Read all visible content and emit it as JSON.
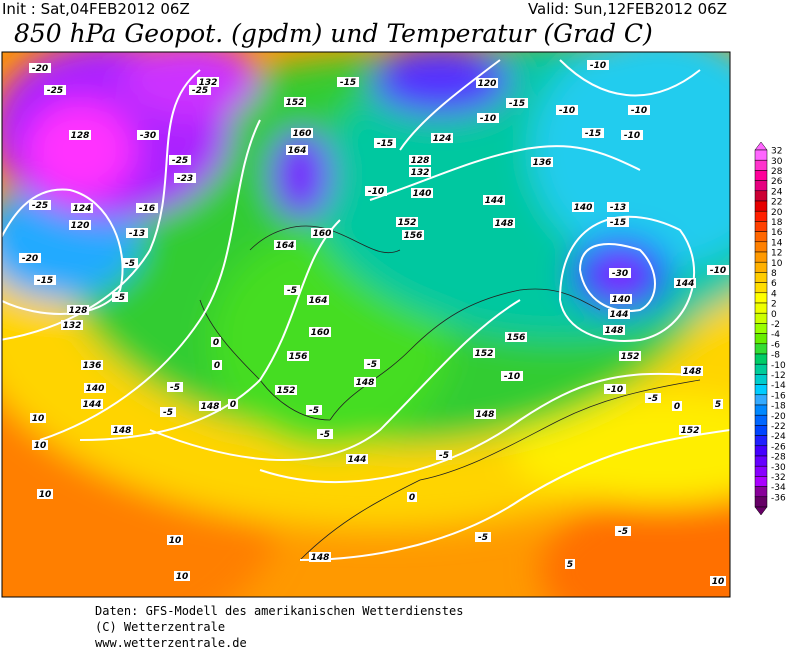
{
  "header": {
    "init": "Init : Sat,04FEB2012 06Z",
    "valid": "Valid: Sun,12FEB2012 06Z",
    "title": "850 hPa Geopot. (gpdm) und Temperatur (Grad C)"
  },
  "map": {
    "contour_labels": [
      "-20",
      "-25",
      "128",
      "-25",
      "124",
      "120",
      "-20",
      "-15",
      "-13",
      "-16",
      "-5",
      "-5",
      "128",
      "132",
      "136",
      "140",
      "144",
      "148",
      "10",
      "10",
      "10",
      "10",
      "10",
      "-30",
      "-25",
      "-23",
      "132",
      "-25",
      "152",
      "160",
      "164",
      "-15",
      "-15",
      "124",
      "128",
      "132",
      "140",
      "144",
      "-10",
      "148",
      "152",
      "156",
      "164",
      "160",
      "-5",
      "164",
      "160",
      "156",
      "152",
      "148",
      "144",
      "148",
      "0",
      "0",
      "0",
      "-5",
      "-5",
      "-5",
      "-5",
      "-5",
      "0",
      "-5",
      "156",
      "152",
      "148",
      "-10",
      "-10",
      "-15",
      "136",
      "140",
      "-13",
      "-15",
      "-30",
      "140",
      "144",
      "148",
      "152",
      "144",
      "-10",
      "-10",
      "-10",
      "-10",
      "-15",
      "-10",
      "-10",
      "-5",
      "0",
      "148",
      "152",
      "5",
      "-5",
      "5",
      "10",
      "-5",
      "148",
      "120"
    ]
  },
  "legend": {
    "ticks": [
      32,
      30,
      28,
      26,
      24,
      22,
      20,
      18,
      16,
      14,
      12,
      10,
      8,
      6,
      4,
      2,
      0,
      -2,
      -4,
      -6,
      -8,
      -10,
      -12,
      -14,
      -16,
      -18,
      -20,
      -22,
      -24,
      -26,
      -28,
      -30,
      -32,
      -34,
      -36
    ],
    "colors": [
      "#ff66ff",
      "#ff33cc",
      "#ff0099",
      "#e6007f",
      "#cc0033",
      "#e60000",
      "#ff2000",
      "#ff4000",
      "#ff6600",
      "#ff8000",
      "#ff9900",
      "#ffb000",
      "#ffcc00",
      "#ffdd00",
      "#ffff00",
      "#eeff00",
      "#ccff00",
      "#99ff00",
      "#66ee00",
      "#33dd33",
      "#00cc66",
      "#00cc99",
      "#00cccc",
      "#00ccff",
      "#33aaff",
      "#0088ff",
      "#0066ff",
      "#0044ff",
      "#2020ff",
      "#4400ff",
      "#6600ff",
      "#8800ff",
      "#aa00ff",
      "#880099",
      "#660066"
    ]
  },
  "footer": {
    "lines": [
      "Daten: GFS-Modell des amerikanischen Wetterdienstes",
      "(C) Wetterzentrale",
      "www.wetterzentrale.de"
    ]
  }
}
